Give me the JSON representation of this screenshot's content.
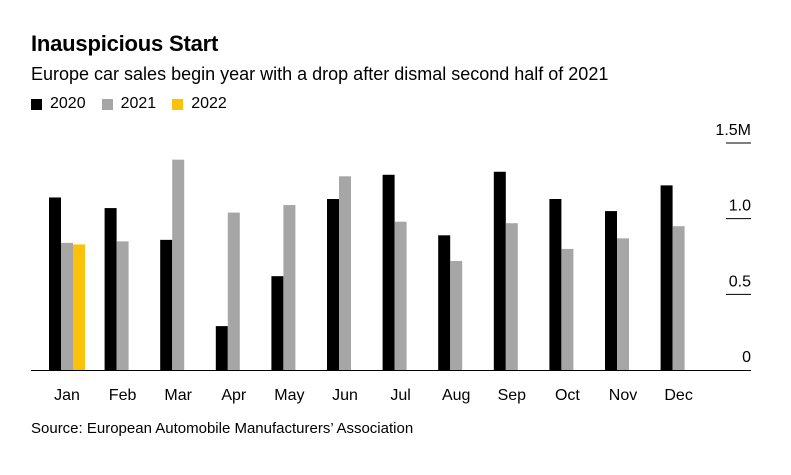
{
  "chart_data": {
    "type": "bar",
    "title": "Inauspicious Start",
    "subtitle": "Europe car sales begin year with a drop after dismal second half of 2021",
    "source": "Source: European Automobile Manufacturers’ Association",
    "categories": [
      "Jan",
      "Feb",
      "Mar",
      "Apr",
      "May",
      "Jun",
      "Jul",
      "Aug",
      "Sep",
      "Oct",
      "Nov",
      "Dec"
    ],
    "series": [
      {
        "name": "2020",
        "color": "#000000",
        "values": [
          1.14,
          1.07,
          0.86,
          0.29,
          0.62,
          1.13,
          1.29,
          0.89,
          1.31,
          1.13,
          1.05,
          1.22
        ]
      },
      {
        "name": "2021",
        "color": "#a6a6a6",
        "values": [
          0.84,
          0.85,
          1.39,
          1.04,
          1.09,
          1.28,
          0.98,
          0.72,
          0.97,
          0.8,
          0.87,
          0.95
        ]
      },
      {
        "name": "2022",
        "color": "#fcc10a",
        "values": [
          0.83,
          null,
          null,
          null,
          null,
          null,
          null,
          null,
          null,
          null,
          null,
          null
        ]
      }
    ],
    "yticks": [
      {
        "value": 0,
        "label": "0"
      },
      {
        "value": 0.5,
        "label": "0.5"
      },
      {
        "value": 1.0,
        "label": "1.0"
      },
      {
        "value": 1.5,
        "label": "1.5M"
      }
    ],
    "ylim": [
      0,
      1.5
    ],
    "xlabel": "",
    "ylabel": ""
  }
}
